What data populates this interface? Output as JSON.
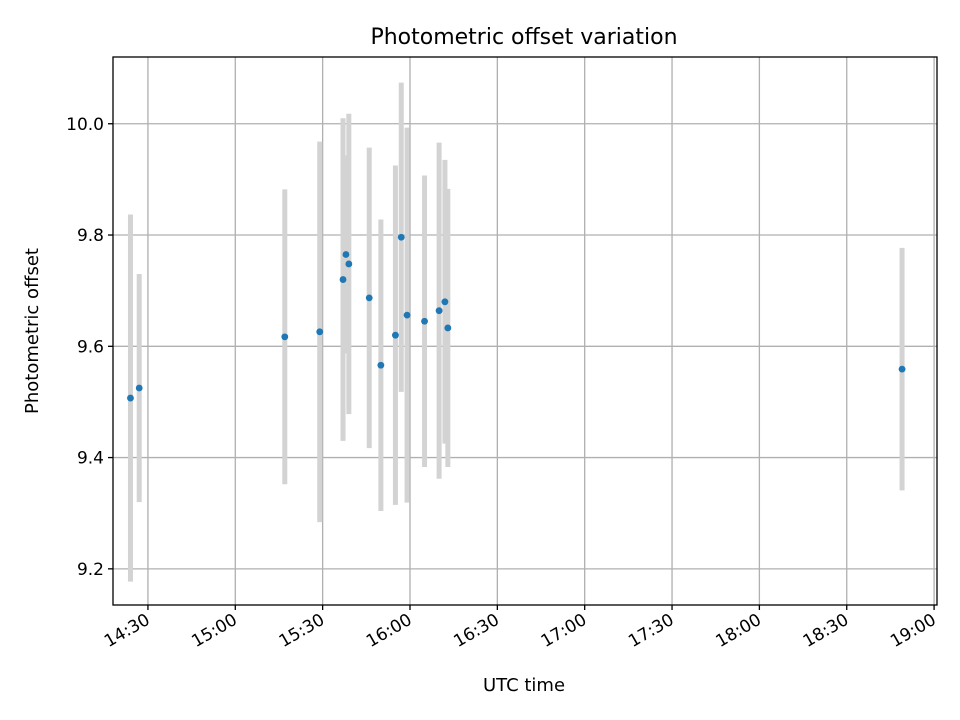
{
  "chart_data": {
    "type": "scatter",
    "title": "Photometric offset variation",
    "xlabel": "UTC time",
    "ylabel": "Photometric offset",
    "xlim": [
      "14:18",
      "19:01"
    ],
    "ylim": [
      9.135,
      10.12
    ],
    "x_ticks": [
      "14:30",
      "15:00",
      "15:30",
      "16:00",
      "16:30",
      "17:00",
      "17:30",
      "18:00",
      "18:30",
      "19:00"
    ],
    "y_ticks": [
      "9.2",
      "9.4",
      "9.6",
      "9.8",
      "10.0"
    ],
    "grid": true,
    "colors": {
      "point": "#1f77b4",
      "errorbar": "#d3d3d3",
      "grid": "#b0b0b0"
    },
    "series": [
      {
        "points": [
          {
            "x": "14:24",
            "y": 9.507,
            "err": 0.33
          },
          {
            "x": "14:27",
            "y": 9.525,
            "err": 0.205
          },
          {
            "x": "15:17",
            "y": 9.617,
            "err": 0.265
          },
          {
            "x": "15:29",
            "y": 9.626,
            "err": 0.342
          },
          {
            "x": "15:37",
            "y": 9.72,
            "err": 0.29
          },
          {
            "x": "15:38",
            "y": 9.765,
            "err": 0.178
          },
          {
            "x": "15:39",
            "y": 9.748,
            "err": 0.27
          },
          {
            "x": "15:46",
            "y": 9.687,
            "err": 0.27
          },
          {
            "x": "15:50",
            "y": 9.566,
            "err": 0.262
          },
          {
            "x": "15:55",
            "y": 9.62,
            "err": 0.305
          },
          {
            "x": "15:57",
            "y": 9.796,
            "err": 0.278
          },
          {
            "x": "15:59",
            "y": 9.656,
            "err": 0.337
          },
          {
            "x": "16:05",
            "y": 9.645,
            "err": 0.262
          },
          {
            "x": "16:10",
            "y": 9.664,
            "err": 0.302
          },
          {
            "x": "16:12",
            "y": 9.68,
            "err": 0.255
          },
          {
            "x": "16:13",
            "y": 9.633,
            "err": 0.25
          },
          {
            "x": "18:49",
            "y": 9.559,
            "err": 0.218
          }
        ]
      }
    ]
  }
}
